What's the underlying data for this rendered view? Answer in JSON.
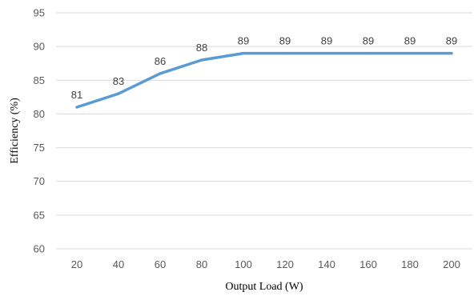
{
  "chart_data": {
    "type": "line",
    "xlabel": "Output Load (W)",
    "ylabel": "Efficiency (%)",
    "x": [
      20,
      40,
      60,
      80,
      100,
      120,
      140,
      160,
      180,
      200
    ],
    "series": [
      {
        "values": [
          81,
          83,
          86,
          88,
          89,
          89,
          89,
          89,
          89,
          89
        ],
        "color": "#5b9bd5"
      }
    ],
    "ylim": [
      60,
      95
    ],
    "yticks": [
      60,
      65,
      70,
      75,
      80,
      85,
      90,
      95
    ],
    "grid": "horizontal",
    "data_labels": true,
    "legend": "none"
  }
}
